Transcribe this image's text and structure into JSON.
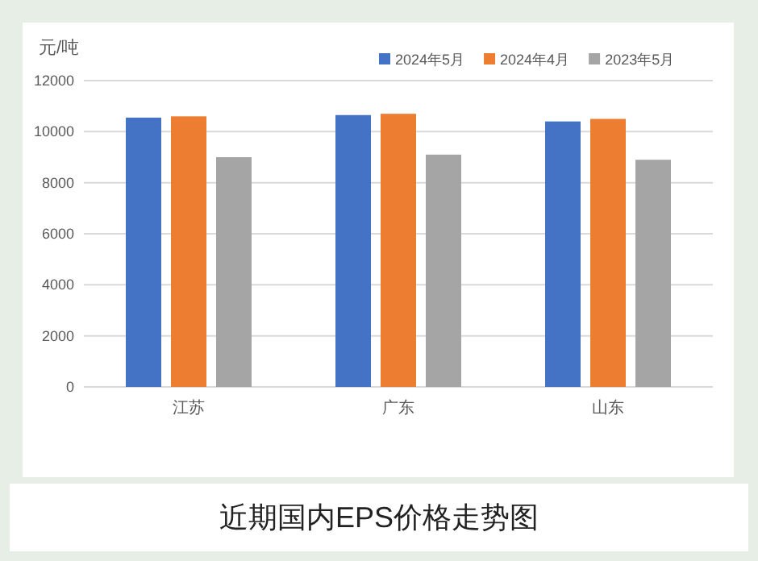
{
  "chart_data": {
    "type": "bar",
    "title": "近期国内EPS价格走势图",
    "ylabel": "元/吨",
    "categories": [
      "江苏",
      "广东",
      "山东"
    ],
    "series": [
      {
        "name": "2024年5月",
        "color": "#4472c4",
        "values": [
          10550,
          10650,
          10400
        ]
      },
      {
        "name": "2024年4月",
        "color": "#ed7d31",
        "values": [
          10600,
          10700,
          10500
        ]
      },
      {
        "name": "2023年5月",
        "color": "#a5a5a5",
        "values": [
          9000,
          9100,
          8900
        ]
      }
    ],
    "ylim": [
      0,
      12000
    ],
    "yticks": [
      0,
      2000,
      4000,
      6000,
      8000,
      10000,
      12000
    ],
    "grid": "y",
    "legend": "top right"
  }
}
